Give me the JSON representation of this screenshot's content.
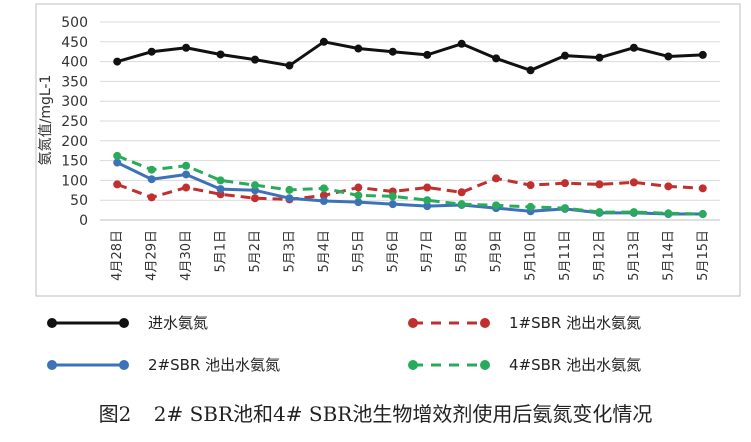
{
  "chart_data": {
    "type": "line",
    "title": "",
    "xlabel": "",
    "ylabel": "氨氮值/mgL-1",
    "ylim": [
      0,
      500
    ],
    "yticks": [
      0,
      50,
      100,
      150,
      200,
      250,
      300,
      350,
      400,
      450,
      500
    ],
    "grid": true,
    "legend_position": "bottom",
    "categories": [
      "4月28日",
      "4月29日",
      "4月30日",
      "5月1日",
      "5月2日",
      "5月3日",
      "5月4日",
      "5月5日",
      "5月6日",
      "5月7日",
      "5月8日",
      "5月9日",
      "5月10日",
      "5月11日",
      "5月12日",
      "5月13日",
      "5月14日",
      "5月15日"
    ],
    "series": [
      {
        "name": "进水氨氮",
        "color": "#111111",
        "dash": "solid",
        "values": [
          400,
          425,
          435,
          418,
          405,
          390,
          450,
          433,
          425,
          417,
          445,
          408,
          378,
          415,
          410,
          435,
          413,
          417
        ]
      },
      {
        "name": "1#SBR 池出水氨氮",
        "color": "#c0302f",
        "dash": "dashed",
        "values": [
          90,
          57,
          82,
          65,
          55,
          52,
          62,
          82,
          72,
          82,
          70,
          105,
          88,
          93,
          90,
          95,
          85,
          80
        ]
      },
      {
        "name": "2#SBR 池出水氨氮",
        "color": "#3d72b8",
        "dash": "solid",
        "values": [
          145,
          103,
          115,
          78,
          75,
          55,
          48,
          45,
          40,
          35,
          38,
          30,
          22,
          28,
          18,
          18,
          15,
          15
        ]
      },
      {
        "name": "4#SBR 池出水氨氮",
        "color": "#2aab5b",
        "dash": "dashed",
        "values": [
          162,
          127,
          137,
          100,
          88,
          76,
          80,
          62,
          60,
          50,
          40,
          37,
          33,
          30,
          20,
          20,
          17,
          15
        ]
      }
    ]
  },
  "caption": {
    "label": "图2",
    "text": "2# SBR池和4# SBR池生物增效剂使用后氨氮变化情况"
  }
}
